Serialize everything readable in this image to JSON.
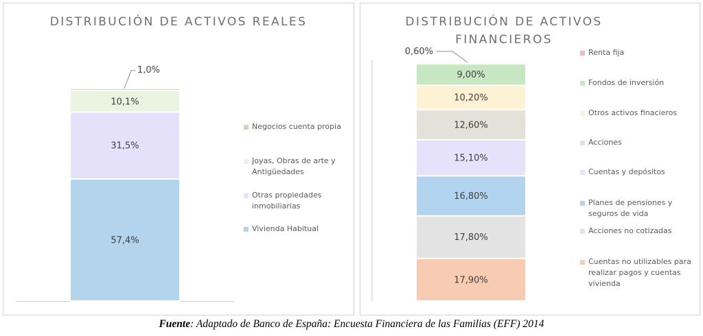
{
  "chart_data": [
    {
      "type": "bar",
      "subtype": "stacked-100",
      "title": "DISTRIBUCIÓN DE ACTIVOS REALES",
      "series": [
        {
          "name": "Vivienda Habitual",
          "value": 57.4,
          "label": "57,4%",
          "color": "#b4d3ec"
        },
        {
          "name": "Otras propiedades inmobiliarias",
          "value": 31.5,
          "label": "31,5%",
          "color": "#e5e1fb"
        },
        {
          "name": "Joyas, Obras de arte y Antigüedades",
          "value": 10.1,
          "label": "10,1%",
          "color": "#e9f4e1"
        },
        {
          "name": "Negocios cuenta propia",
          "value": 1.0,
          "label": "1,0%",
          "color": "#d2d5bf"
        }
      ],
      "legend_order": [
        "Negocios cuenta propia",
        "Joyas, Obras de arte y Antigüedades",
        "Otras propiedades inmobiliarias",
        "Vivienda Habitual"
      ],
      "legend_position": "right",
      "grid": false
    },
    {
      "type": "bar",
      "subtype": "stacked-100",
      "title": "DISTRIBUCIÓN DE ACTIVOS\nFINANCIEROS",
      "series": [
        {
          "name": "Cuentas no utilizables para realizar pagos y cuentas vivienda",
          "value": 17.9,
          "label": "17,90%",
          "color": "#f8ccb3"
        },
        {
          "name": "Acciones no cotizadas",
          "value": 17.8,
          "label": "17,80%",
          "color": "#e3e3e3"
        },
        {
          "name": "Planes de pensiones y seguros de vida",
          "value": 16.8,
          "label": "16,80%",
          "color": "#b3d4ef"
        },
        {
          "name": "Cuentas y depósitos",
          "value": 15.1,
          "label": "15,10%",
          "color": "#e6e2fc"
        },
        {
          "name": "Acciones",
          "value": 12.6,
          "label": "12,60%",
          "color": "#e3e1d8"
        },
        {
          "name": "Otros activos finacieros",
          "value": 10.2,
          "label": "10,20%",
          "color": "#fdf2d4"
        },
        {
          "name": "Fondos de inversión",
          "value": 9.0,
          "label": "9,00%",
          "color": "#c7e6c2"
        },
        {
          "name": "Renta fija",
          "value": 0.6,
          "label": "0,60%",
          "color": "#f2b9c0"
        }
      ],
      "legend_order": [
        "Renta fija",
        "Fondos de inversión",
        "Otros activos finacieros",
        "Acciones",
        "Cuentas y depósitos",
        "Planes de pensiones y seguros de vida",
        "Acciones no cotizadas",
        "Cuentas no utilizables para realizar pagos y cuentas vivienda"
      ],
      "legend_position": "right",
      "grid": false
    }
  ],
  "legend_left": [
    {
      "label": "Negocios cuenta propia",
      "color": "#d2d5bf"
    },
    {
      "label": "Joyas, Obras de arte y Antigüedades",
      "color": "#e9f4e1"
    },
    {
      "label": "Otras propiedades inmobiliarias",
      "color": "#e5e1fb"
    },
    {
      "label": "Vivienda Habitual",
      "color": "#b4d3ec"
    }
  ],
  "legend_right": [
    {
      "label": "Renta fija",
      "color": "#f2b9c0"
    },
    {
      "label": "Fondos de inversión",
      "color": "#c7e6c2"
    },
    {
      "label": "Otros activos finacieros",
      "color": "#fdf2d4"
    },
    {
      "label": "Acciones",
      "color": "#e3e1d8"
    },
    {
      "label": "Cuentas y depósitos",
      "color": "#e6e2fc"
    },
    {
      "label": "Planes de pensiones y seguros de vida",
      "color": "#b3d4ef"
    },
    {
      "label": "Acciones no cotizadas",
      "color": "#e3e3e3"
    },
    {
      "label": "Cuentas no utilizables para realizar pagos y cuentas vivienda",
      "color": "#f8ccb3"
    }
  ],
  "source": {
    "label": "Fuente",
    "text": ": Adaptado de Banco de España: Encuesta Financiera de las Familias (EFF) 2014"
  }
}
